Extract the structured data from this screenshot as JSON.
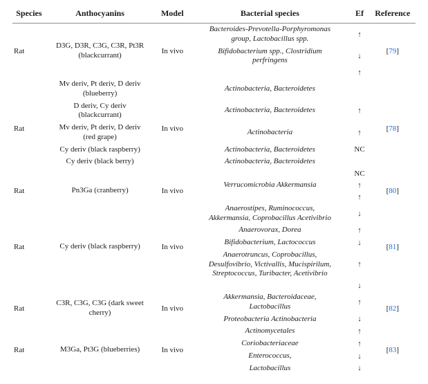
{
  "columns": {
    "species": "Species",
    "anthocyanins": "Anthocyanins",
    "model": "Model",
    "bacterial": "Bacterial species",
    "ef": "Ef",
    "reference": "Reference"
  },
  "arrows": {
    "up": "↑",
    "down": "↓",
    "nc": "NC"
  },
  "rows": [
    {
      "species": "Rat",
      "model": "In vivo",
      "ref": "79",
      "anth_lines": [
        "D3G, D3R, C3G, C3R, Pt3R",
        "(blackcurrant)"
      ],
      "bact_blocks": [
        {
          "lines": [
            "Bacteroides-Prevotella-Porphyromonas",
            "group, Lactobacillus spp."
          ],
          "ef": "↑"
        },
        {
          "lines": [
            "Bifidobacterium spp., Clostridium",
            "perfringens"
          ],
          "ef": "↓"
        }
      ],
      "trailing_ef": "↑"
    },
    {
      "species": "Rat",
      "model": "In vivo",
      "ref": "78",
      "anth_groups": [
        {
          "anth": [
            "Mv deriv, Pt deriv, D deriv",
            "(blueberry)"
          ],
          "bact": [
            "Actinobacteria, Bacteroidetes"
          ],
          "ef": ""
        },
        {
          "anth": [
            "D deriv, Cy deriv",
            "(blackcurrant)"
          ],
          "bact": [
            "Actinobacteria, Bacteroidetes"
          ],
          "ef": "↑"
        },
        {
          "anth": [
            "Mv deriv, Pt deriv, D deriv",
            "(red grape)"
          ],
          "bact": [
            "Actinobacteria"
          ],
          "ef": "↑"
        },
        {
          "anth": [
            "Cy deriv (black raspberry)"
          ],
          "bact": [
            "Actinobacteria, Bacteroidetes"
          ],
          "ef": "NC"
        },
        {
          "anth": [
            "Cy deriv (black berry)"
          ],
          "bact": [
            "Actinobacteria, Bacteroidetes"
          ],
          "ef": ""
        }
      ],
      "trailing_ef": "NC"
    },
    {
      "species": "Rat",
      "model": "In vivo",
      "ref": "80",
      "anth_lines": [
        "Pn3Ga (cranberry)"
      ],
      "bact_blocks": [
        {
          "lines": [
            "Verrucomicrobia Akkermansia"
          ],
          "ef": "↑"
        }
      ],
      "trailing_ef": "↑"
    },
    {
      "species": "Rat",
      "model": "In vivo",
      "ref": "81",
      "anth_lines": [
        "Cy deriv (black raspberry)"
      ],
      "bact_blocks": [
        {
          "lines": [
            "Anaerostipes, Ruminococcus,",
            "Akkermansia, Coprobacillus Acetivibrio"
          ],
          "ef": "↓"
        },
        {
          "lines": [
            "Anaerovorax, Dorea"
          ],
          "ef": "↑"
        },
        {
          "lines": [
            "Bifidobacterium, Lactococcus"
          ],
          "ef": "↓"
        },
        {
          "lines": [
            "Anaerotruncus, Coprobacillus,",
            "Desulfovibrio, Victivallis, Mucispirilum,",
            "Streptococcus, Turibacter, Acetivibrio"
          ],
          "ef": "↑"
        }
      ],
      "trailing_ef": "↓"
    },
    {
      "species": "Rat",
      "model": "In vivo",
      "ref": "82",
      "anth_lines": [
        "C3R, C3G, C3G (dark sweet",
        "cherry)"
      ],
      "bact_blocks": [
        {
          "lines": [
            "Akkermansia, Bacteroidaceae,",
            "Lactobacillus"
          ],
          "ef": "↑"
        },
        {
          "lines": [
            "Proteobacteria Actinobacteria"
          ],
          "ef": "↓"
        }
      ]
    },
    {
      "species": "Rat",
      "model": "In vivo",
      "ref": "83",
      "anth_lines": [
        "M3Ga, Pt3G (blueberries)"
      ],
      "bact_blocks": [
        {
          "lines": [
            "Actinomycetales"
          ],
          "ef": "↑"
        },
        {
          "lines": [
            "Coriobacteriaceae"
          ],
          "ef": "↑"
        },
        {
          "lines": [
            "Enterococcus,"
          ],
          "ef": "↓"
        },
        {
          "lines": [
            "Lactobacillus"
          ],
          "ef": "↓"
        }
      ]
    }
  ]
}
